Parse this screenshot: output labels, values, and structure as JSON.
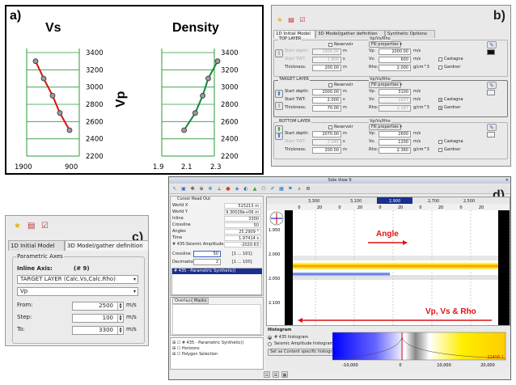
{
  "panel_a": {
    "letter": "a)",
    "left": {
      "title": "Vs",
      "yticks": [
        "3400",
        "3200",
        "3000",
        "2800",
        "2600",
        "2400",
        "2200"
      ],
      "xticks": [
        "1900",
        "900"
      ],
      "y_label": "Vp"
    },
    "right": {
      "title": "Density",
      "yticks": [
        "3400",
        "3200",
        "3000",
        "2800",
        "2600",
        "2400",
        "2200"
      ],
      "xticks": [
        "1.9",
        "2.1",
        "2.3"
      ]
    }
  },
  "chart_data": [
    {
      "type": "line",
      "title": "Vs",
      "x_ticks": [
        "1900",
        "900"
      ],
      "y_ticks": [
        "3400",
        "3200",
        "3000",
        "2800",
        "2600",
        "2400",
        "2200"
      ],
      "ylim": [
        2200,
        3400
      ],
      "series": [
        {
          "values": [
            3300,
            3100,
            2900,
            2700,
            2500
          ]
        }
      ],
      "color": "#dd1111"
    },
    {
      "type": "line",
      "title": "Density",
      "ylabel": "Vp",
      "x_ticks": [
        "1.9",
        "2.1",
        "2.3"
      ],
      "xlim": [
        1.9,
        2.3
      ],
      "ylim": [
        2200,
        3400
      ],
      "series": [
        {
          "x": [
            2.02,
            2.08,
            2.12,
            2.15,
            2.2
          ],
          "values": [
            2500,
            2700,
            2900,
            3100,
            3300
          ]
        }
      ],
      "color": "#118833"
    }
  ],
  "panel_b": {
    "letter": "b)",
    "tabs": [
      "1D Initial Model",
      "3D Model/gather definition",
      "Synthetic Options"
    ],
    "layers": [
      {
        "title": "TOP LAYER",
        "start_depth_label": "Start depth:",
        "start_depth": "1800.00",
        "start_twt_label": "Start TWT:",
        "start_twt": "1.800",
        "thickness_label": "Thickness:",
        "thickness": "200.00",
        "reservoir": "Reservoir",
        "vp_group": "Vp/Vs/Rho",
        "fill": "Fill properties",
        "vp": "2000.00",
        "vs": "600",
        "rho": "2.000",
        "castagna": "Castagna",
        "gardner": "Gardner",
        "castagna_checked": false,
        "gardner_checked": false,
        "swatch": "#111111"
      },
      {
        "title": "TARGET LAYER",
        "start_depth_label": "Start depth:",
        "start_depth": "2000.00",
        "start_twt_label": "Start TWT:",
        "start_twt": "2.000",
        "thickness_label": "Thickness:",
        "thickness": "70.00",
        "reservoir": "Reservoir",
        "vp_group": "Vp/Vs/Rho",
        "fill": "Fill properties",
        "vp": "3100",
        "vs": "1637",
        "rho": "2.187",
        "castagna": "Castagna",
        "gardner": "Gardner",
        "castagna_checked": true,
        "gardner_checked": true,
        "swatch": "#f2f2f2"
      },
      {
        "title": "BOTTOM LAYER",
        "start_depth_label": "Start depth:",
        "start_depth": "2070.00",
        "start_twt_label": "Start TWT:",
        "start_twt": "2.045",
        "thickness_label": "Thickness:",
        "thickness": "200.00",
        "reservoir": "Reservoir",
        "vp_group": "Vp/Vs/Rho",
        "fill": "Fill properties",
        "vp": "2600",
        "vs": "1200",
        "rho": "2.360",
        "castagna": "Castagna",
        "gardner": "Gardner",
        "castagna_checked": false,
        "gardner_checked": false,
        "swatch": "#f2f2f2"
      }
    ],
    "units": {
      "m": "m",
      "s": "s",
      "ms": "m/s",
      "gcc": "g/cm^3",
      "vp": "Vp:",
      "vs": "Vs:",
      "rho": "Rho:"
    }
  },
  "panel_c": {
    "letter": "c)",
    "tabs": [
      "1D Initial Model",
      "3D Model/gather definition"
    ],
    "group": "Parametric Axes",
    "inline_axis_label": "Inline Axis:",
    "inline_axis_num": "(# 9)",
    "layer_select": "TARGET LAYER (Calc.Vs,Calc.Rho)",
    "prop_select": "Vp",
    "from_label": "From:",
    "from": "2500",
    "step_label": "Step:",
    "step": "100",
    "to_label": "To:",
    "to": "3300",
    "unit": "m/s"
  },
  "panel_d": {
    "letter": "d)",
    "window_title": "Side View 9",
    "readout": {
      "header": "Cursor Read Out",
      "rows": [
        {
          "k": "World X",
          "v": "515213 m"
        },
        {
          "k": "World Y",
          "v": "9.30028e+06 m"
        },
        {
          "k": "Inline",
          "v": "3300"
        },
        {
          "k": "Crossline",
          "v": "50"
        },
        {
          "k": "Angles",
          "v": "25.2909 °"
        },
        {
          "k": "Time",
          "v": "1.97414 s"
        },
        {
          "k": "# 435:Seismic Amplitude",
          "v": "-2020.63"
        }
      ],
      "crossline_label": "Crossline",
      "crossline": "50",
      "crossline_range": "[1 ... 101]",
      "decimation_label": "Decimation",
      "decimation": "2",
      "decimation_range": "[1 ... 100]",
      "list_item": "# 435 - Parametric Synthetic()"
    },
    "tabs": [
      "Overlays",
      "Masks"
    ],
    "tree": [
      "# 435 - Parametric Synthetic()",
      "Horizons",
      "Polygon Selection"
    ],
    "top_ticks": [
      "3,300",
      "3,100",
      "2,900",
      "2,700",
      "2,500"
    ],
    "sub_ticks": [
      "0",
      "20",
      "0",
      "20",
      "0",
      "20",
      "0",
      "20",
      "0",
      "20"
    ],
    "time_ticks": [
      "1.950",
      "2.000",
      "2.050",
      "2.100"
    ],
    "angle_annotation": "Angle",
    "vp_annotation": "Vp, Vs & Rho",
    "histogram": {
      "title": "Histogram",
      "opt1": "# 435 histogram",
      "opt2": "Seismic Amplitude histogram",
      "btn": "Set as Content specific histogram",
      "ticks": [
        "-10,000",
        "0",
        "10,000",
        "20,000"
      ],
      "max_label": "22456.1"
    },
    "colors": {
      "accent": "#e01010",
      "grid_blue": "#1a2f8f"
    }
  }
}
